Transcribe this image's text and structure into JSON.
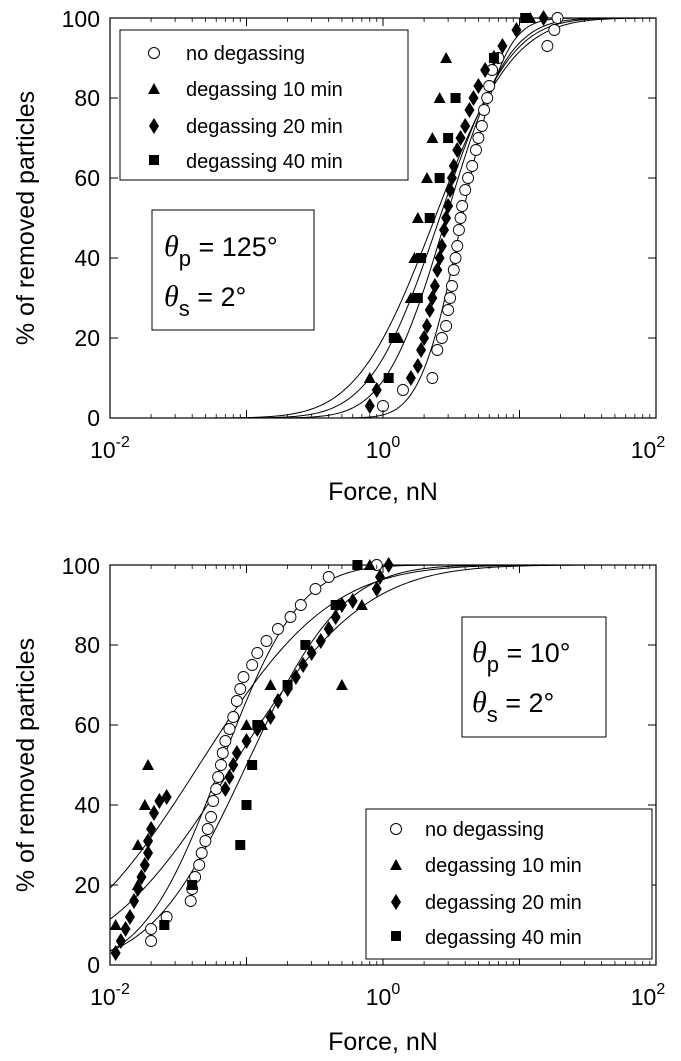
{
  "chart_data": [
    {
      "type": "scatter",
      "xscale": "log",
      "xlim": [
        0.01,
        100
      ],
      "ylim": [
        0,
        100
      ],
      "xlabel": "Force, nN",
      "ylabel": "% of removed particles",
      "xticks": [
        {
          "base": "10",
          "exp": "-2"
        },
        {
          "base": "10",
          "exp": "0"
        },
        {
          "base": "10",
          "exp": "2"
        }
      ],
      "yticks": [
        "0",
        "20",
        "40",
        "60",
        "80",
        "100"
      ],
      "legend_position": "top-left",
      "annotation": {
        "p_prefix": "θ",
        "p_sub": "p",
        "p_value": " = 125°",
        "s_prefix": "θ",
        "s_sub": "s",
        "s_value": " = 2°"
      },
      "series": [
        {
          "name": "no degassing",
          "marker": "circle",
          "points": [
            [
              1.4,
              7
            ],
            [
              1.0,
              3
            ],
            [
              2.3,
              10
            ],
            [
              2.5,
              17
            ],
            [
              2.7,
              20
            ],
            [
              2.9,
              23
            ],
            [
              3.0,
              27
            ],
            [
              3.1,
              30
            ],
            [
              3.2,
              33
            ],
            [
              3.3,
              37
            ],
            [
              3.4,
              40
            ],
            [
              3.5,
              43
            ],
            [
              3.6,
              47
            ],
            [
              3.7,
              50
            ],
            [
              3.8,
              53
            ],
            [
              4.0,
              57
            ],
            [
              4.2,
              60
            ],
            [
              4.5,
              63
            ],
            [
              4.8,
              67
            ],
            [
              5.0,
              70
            ],
            [
              5.3,
              73
            ],
            [
              5.5,
              77
            ],
            [
              5.8,
              80
            ],
            [
              6.0,
              83
            ],
            [
              6.3,
              87
            ],
            [
              7.0,
              90
            ],
            [
              16,
              93
            ],
            [
              18,
              97
            ],
            [
              19,
              100
            ]
          ],
          "fit": {
            "x0": 3.8,
            "s": 0.24
          }
        },
        {
          "name": "degassing 10 min",
          "marker": "triangle",
          "points": [
            [
              0.8,
              10
            ],
            [
              1.3,
              20
            ],
            [
              1.6,
              30
            ],
            [
              1.7,
              40
            ],
            [
              1.8,
              50
            ],
            [
              2.1,
              60
            ],
            [
              2.3,
              70
            ],
            [
              2.6,
              80
            ],
            [
              2.9,
              90
            ],
            [
              12,
              100
            ]
          ],
          "fit": {
            "x0": 2.4,
            "s": 0.45
          }
        },
        {
          "name": "degassing 20 min",
          "marker": "diamond",
          "points": [
            [
              0.8,
              3
            ],
            [
              0.9,
              7
            ],
            [
              1.6,
              10
            ],
            [
              1.8,
              13
            ],
            [
              1.9,
              17
            ],
            [
              2.0,
              20
            ],
            [
              2.1,
              23
            ],
            [
              2.2,
              27
            ],
            [
              2.3,
              30
            ],
            [
              2.4,
              33
            ],
            [
              2.5,
              37
            ],
            [
              2.6,
              40
            ],
            [
              2.7,
              43
            ],
            [
              2.8,
              47
            ],
            [
              2.9,
              50
            ],
            [
              3.0,
              53
            ],
            [
              3.1,
              57
            ],
            [
              3.2,
              60
            ],
            [
              3.3,
              63
            ],
            [
              3.5,
              67
            ],
            [
              3.7,
              70
            ],
            [
              4.0,
              73
            ],
            [
              4.3,
              77
            ],
            [
              4.6,
              80
            ],
            [
              5.0,
              83
            ],
            [
              5.6,
              87
            ],
            [
              6.5,
              90
            ],
            [
              7.5,
              93
            ],
            [
              9.5,
              97
            ],
            [
              15,
              100
            ]
          ],
          "fit": {
            "x0": 2.9,
            "s": 0.35
          }
        },
        {
          "name": "degassing 40 min",
          "marker": "square",
          "points": [
            [
              1.1,
              10
            ],
            [
              1.2,
              20
            ],
            [
              1.8,
              30
            ],
            [
              1.9,
              40
            ],
            [
              2.2,
              50
            ],
            [
              2.6,
              60
            ],
            [
              3.0,
              70
            ],
            [
              3.4,
              80
            ],
            [
              6.5,
              90
            ],
            [
              11,
              100
            ]
          ],
          "fit": {
            "x0": 2.6,
            "s": 0.4
          }
        }
      ]
    },
    {
      "type": "scatter",
      "xscale": "log",
      "xlim": [
        0.01,
        100
      ],
      "ylim": [
        0,
        100
      ],
      "xlabel": "Force, nN",
      "ylabel": "% of removed particles",
      "xticks": [
        {
          "base": "10",
          "exp": "-2"
        },
        {
          "base": "10",
          "exp": "0"
        },
        {
          "base": "10",
          "exp": "2"
        }
      ],
      "yticks": [
        "0",
        "20",
        "40",
        "60",
        "80",
        "100"
      ],
      "legend_position": "bottom-right",
      "annotation": {
        "p_prefix": "θ",
        "p_sub": "p",
        "p_value": " = 10°",
        "s_prefix": "θ",
        "s_sub": "s",
        "s_value": " = 2°"
      },
      "series": [
        {
          "name": "no degassing",
          "marker": "circle",
          "points": [
            [
              0.02,
              6
            ],
            [
              0.02,
              9
            ],
            [
              0.026,
              12
            ],
            [
              0.039,
              16
            ],
            [
              0.04,
              19
            ],
            [
              0.042,
              22
            ],
            [
              0.045,
              25
            ],
            [
              0.047,
              28
            ],
            [
              0.05,
              31
            ],
            [
              0.052,
              34
            ],
            [
              0.055,
              37
            ],
            [
              0.057,
              41
            ],
            [
              0.06,
              44
            ],
            [
              0.062,
              47
            ],
            [
              0.065,
              50
            ],
            [
              0.067,
              53
            ],
            [
              0.07,
              56
            ],
            [
              0.075,
              59
            ],
            [
              0.08,
              62
            ],
            [
              0.085,
              66
            ],
            [
              0.09,
              69
            ],
            [
              0.095,
              72
            ],
            [
              0.11,
              75
            ],
            [
              0.12,
              78
            ],
            [
              0.14,
              81
            ],
            [
              0.17,
              84
            ],
            [
              0.21,
              87
            ],
            [
              0.25,
              90
            ],
            [
              0.32,
              94
            ],
            [
              0.4,
              97
            ],
            [
              0.9,
              100
            ]
          ],
          "fit": {
            "x0": 0.065,
            "s": 0.45
          }
        },
        {
          "name": "degassing 10 min",
          "marker": "triangle",
          "points": [
            [
              0.011,
              10
            ],
            [
              0.016,
              20
            ],
            [
              0.016,
              30
            ],
            [
              0.018,
              40
            ],
            [
              0.019,
              50
            ],
            [
              0.1,
              60
            ],
            [
              0.13,
              60
            ],
            [
              0.15,
              70
            ],
            [
              0.5,
              70
            ],
            [
              0.7,
              90
            ],
            [
              0.8,
              100
            ]
          ],
          "fit": {
            "x0": 0.045,
            "s": 0.75
          }
        },
        {
          "name": "degassing 20 min",
          "marker": "diamond",
          "points": [
            [
              0.011,
              3
            ],
            [
              0.012,
              6
            ],
            [
              0.013,
              9
            ],
            [
              0.014,
              12
            ],
            [
              0.015,
              16
            ],
            [
              0.016,
              19
            ],
            [
              0.017,
              22
            ],
            [
              0.018,
              25
            ],
            [
              0.019,
              28
            ],
            [
              0.019,
              31
            ],
            [
              0.02,
              34
            ],
            [
              0.021,
              38
            ],
            [
              0.023,
              41
            ],
            [
              0.026,
              42
            ],
            [
              0.07,
              44
            ],
            [
              0.075,
              47
            ],
            [
              0.08,
              50
            ],
            [
              0.085,
              53
            ],
            [
              0.1,
              56
            ],
            [
              0.12,
              59
            ],
            [
              0.15,
              62
            ],
            [
              0.17,
              66
            ],
            [
              0.2,
              69
            ],
            [
              0.23,
              72
            ],
            [
              0.26,
              75
            ],
            [
              0.3,
              78
            ],
            [
              0.35,
              81
            ],
            [
              0.4,
              84
            ],
            [
              0.45,
              87
            ],
            [
              0.5,
              90
            ],
            [
              0.6,
              91
            ],
            [
              0.9,
              94
            ],
            [
              0.95,
              97
            ],
            [
              1.1,
              100
            ]
          ],
          "fit": {
            "x0": 0.08,
            "s": 0.75
          }
        },
        {
          "name": "degassing 40 min",
          "marker": "square",
          "points": [
            [
              0.025,
              10
            ],
            [
              0.04,
              20
            ],
            [
              0.09,
              30
            ],
            [
              0.1,
              40
            ],
            [
              0.11,
              50
            ],
            [
              0.12,
              60
            ],
            [
              0.2,
              70
            ],
            [
              0.27,
              80
            ],
            [
              0.45,
              90
            ],
            [
              0.65,
              100
            ]
          ],
          "fit": {
            "x0": 0.1,
            "s": 0.55
          }
        }
      ]
    }
  ]
}
